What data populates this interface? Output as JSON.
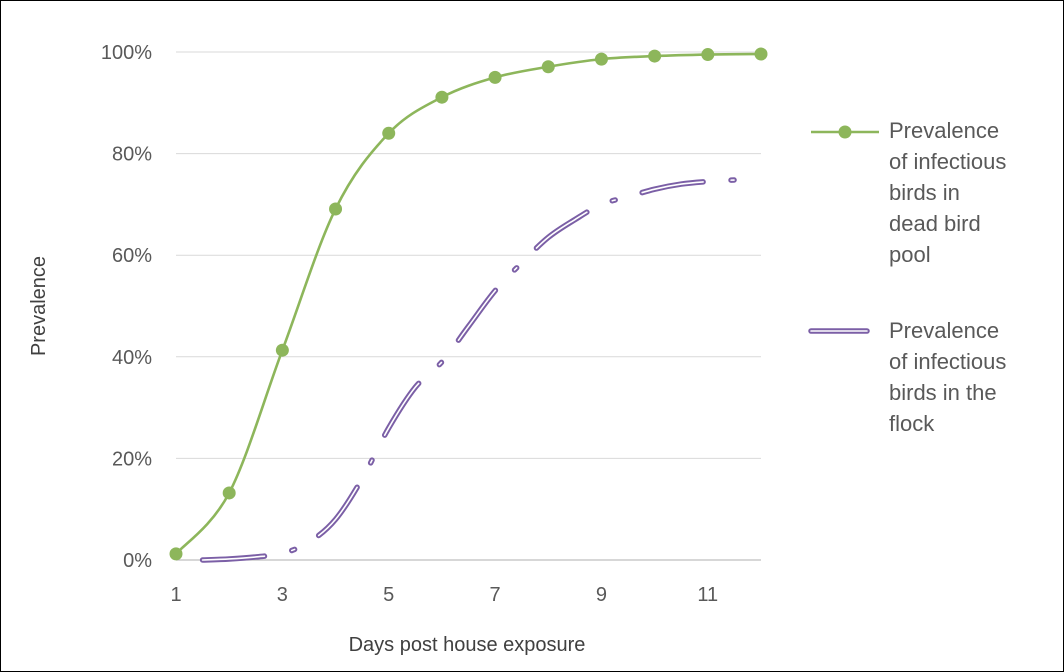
{
  "chart_data": {
    "type": "line",
    "xlabel": "Days post house exposure",
    "ylabel": "Prevalence",
    "xlim": [
      1,
      12
    ],
    "ylim": [
      0,
      1
    ],
    "x_ticks": [
      1,
      3,
      5,
      7,
      9,
      11
    ],
    "y_ticks": [
      "0%",
      "20%",
      "40%",
      "60%",
      "80%",
      "100%"
    ],
    "grid": true,
    "legend_position": "right",
    "series": [
      {
        "name": "Prevalence of infectious birds in dead bird pool",
        "legend_lines": [
          "Prevalence",
          "of infectious",
          "birds in",
          "dead bird",
          "pool"
        ],
        "color": "#8DB65B",
        "style": "solid-with-markers",
        "x": [
          1,
          2,
          3,
          4,
          5,
          6,
          7,
          8,
          9,
          10,
          11,
          12
        ],
        "values": [
          0.012,
          0.132,
          0.413,
          0.691,
          0.84,
          0.911,
          0.95,
          0.971,
          0.986,
          0.992,
          0.995,
          0.996
        ]
      },
      {
        "name": "Prevalence of infectious birds in the flock",
        "legend_lines": [
          "Prevalence",
          "of infectious",
          "birds in the",
          "flock"
        ],
        "color": "#7B5FA6",
        "style": "long-dash-dot",
        "x": [
          1.5,
          2,
          2.5,
          3,
          3.5,
          4,
          4.5,
          5,
          5.5,
          6,
          6.5,
          7,
          7.5,
          8,
          8.5,
          9,
          9.5,
          10,
          10.5,
          11,
          11.5,
          12
        ],
        "values": [
          0.0,
          0.002,
          0.006,
          0.013,
          0.035,
          0.08,
          0.16,
          0.26,
          0.34,
          0.39,
          0.46,
          0.53,
          0.585,
          0.635,
          0.67,
          0.7,
          0.715,
          0.73,
          0.74,
          0.745,
          0.748,
          0.748
        ]
      }
    ]
  }
}
